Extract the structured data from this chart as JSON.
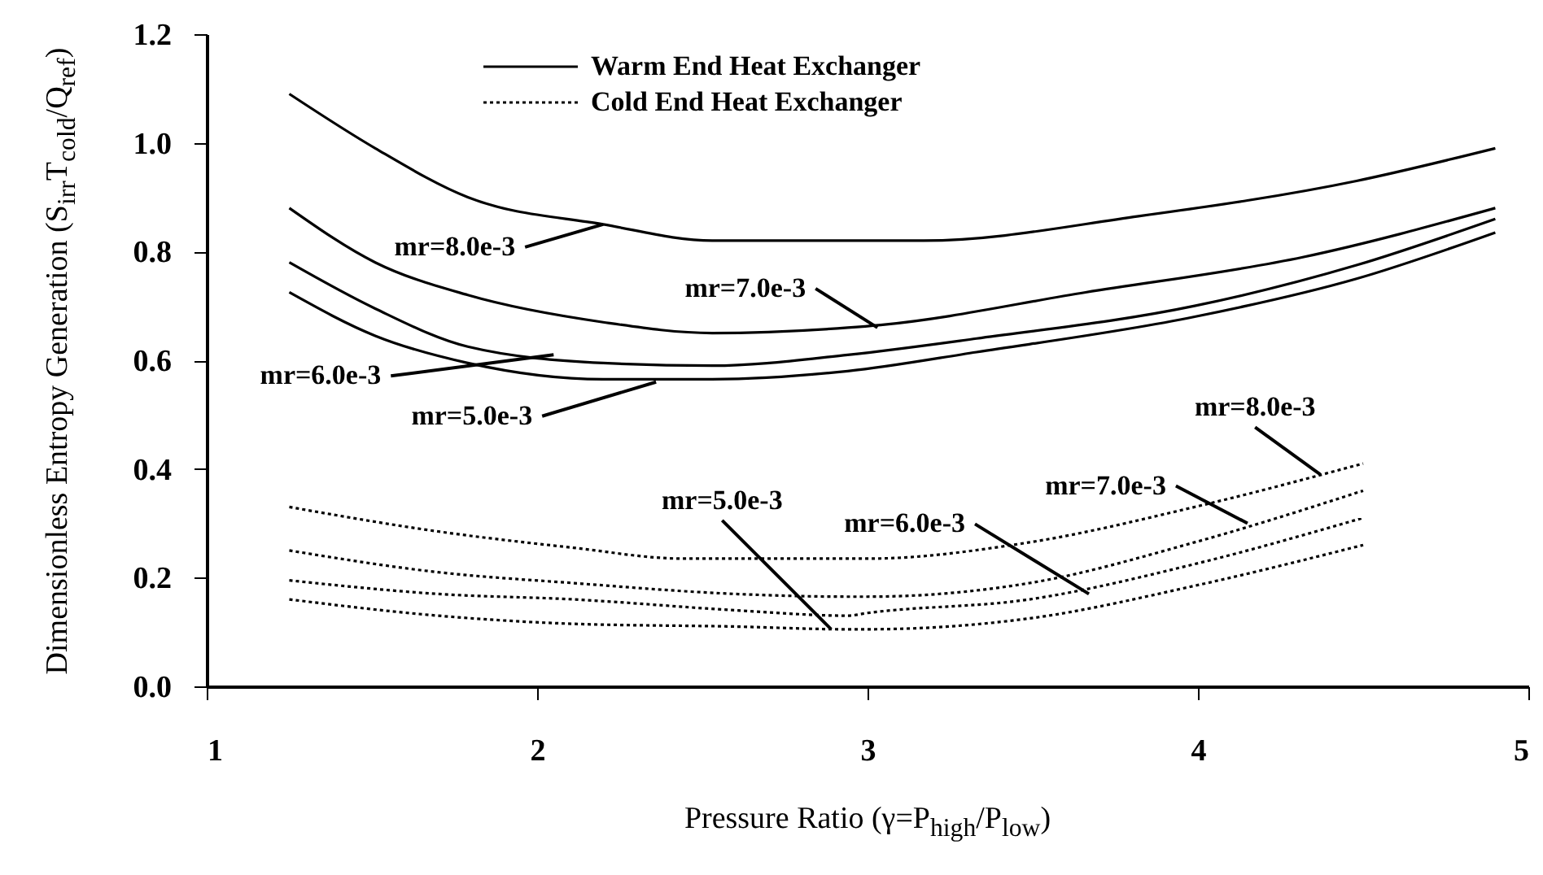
{
  "chart_data": {
    "type": "line",
    "xlabel": "Pressure Ratio (γ=P$_{high}$/P$_{low}$)",
    "ylabel": "Dimensionless Entropy Generation (S$_{irr}$T$_{cold}$/Q$_{ref}$)",
    "xlim": [
      1,
      5
    ],
    "xticks": [
      1,
      2,
      3,
      4,
      5
    ],
    "ylim": [
      0,
      1.2
    ],
    "yticks": [
      {
        "value": 0,
        "label": "0.0"
      },
      {
        "value": 0.2,
        "label": "0.2"
      },
      {
        "value": 0.4,
        "label": "0.4"
      },
      {
        "value": 0.6,
        "label": "0.6"
      },
      {
        "value": 0.8,
        "label": "0.8"
      },
      {
        "value": 1,
        "label": "1.0"
      },
      {
        "value": 1.2,
        "label": "1.2"
      }
    ],
    "grid": false,
    "legend": "top",
    "marker": "none",
    "series": [
      {
        "name": "Warm End Heat Exchanger",
        "color": "#000000",
        "line_style": "solid",
        "x": [
          1.25,
          1.51,
          1.79,
          2.2,
          2.53,
          2.94,
          3.17,
          3.82,
          4.48,
          4.9
        ],
        "values": [
          1.09,
          0.99,
          0.9,
          0.85,
          0.82,
          0.82,
          0.82,
          0.865,
          0.93,
          0.99
        ]
      },
      {
        "color": "#000000",
        "line_style": "solid",
        "x": [
          1.25,
          1.51,
          1.79,
          2.2,
          2.53,
          2.94,
          3.04,
          3.66,
          4.32,
          4.9
        ],
        "values": [
          0.88,
          0.78,
          0.72,
          0.67,
          0.65,
          0.66,
          0.665,
          0.725,
          0.79,
          0.88
        ]
      },
      {
        "color": "#000000",
        "line_style": "solid",
        "x": [
          1.25,
          1.51,
          1.79,
          2.2,
          2.53,
          2.94,
          3.33,
          3.99,
          4.48,
          4.9
        ],
        "values": [
          0.78,
          0.695,
          0.625,
          0.595,
          0.59,
          0.61,
          0.64,
          0.7,
          0.775,
          0.86
        ]
      },
      {
        "color": "#000000",
        "line_style": "solid",
        "x": [
          1.25,
          1.51,
          1.79,
          2.2,
          2.53,
          2.94,
          3.33,
          3.99,
          4.48,
          4.9
        ],
        "values": [
          0.725,
          0.645,
          0.595,
          0.565,
          0.565,
          0.58,
          0.615,
          0.68,
          0.75,
          0.835
        ]
      },
      {
        "name": "Cold End Heat Exchanger",
        "color": "#000000",
        "line_style": "dotted",
        "x": [
          1.25,
          1.7,
          2.11,
          2.44,
          2.94,
          3.0,
          3.49,
          3.99,
          4.5
        ],
        "values": [
          0.33,
          0.285,
          0.255,
          0.235,
          0.235,
          0.235,
          0.265,
          0.33,
          0.41
        ]
      },
      {
        "color": "#000000",
        "line_style": "dotted",
        "x": [
          1.25,
          1.7,
          2.11,
          2.6,
          2.94,
          3.0,
          3.49,
          3.99,
          4.5
        ],
        "values": [
          0.25,
          0.21,
          0.19,
          0.17,
          0.165,
          0.165,
          0.19,
          0.265,
          0.36
        ]
      },
      {
        "color": "#000000",
        "line_style": "dotted",
        "x": [
          1.25,
          1.7,
          2.11,
          2.6,
          2.94,
          3.0,
          3.49,
          3.99,
          4.5
        ],
        "values": [
          0.195,
          0.17,
          0.16,
          0.14,
          0.13,
          0.135,
          0.16,
          0.225,
          0.31
        ]
      },
      {
        "color": "#000000",
        "line_style": "dotted",
        "x": [
          1.25,
          1.7,
          2.11,
          2.6,
          2.94,
          3.0,
          3.49,
          3.99,
          4.5
        ],
        "values": [
          0.16,
          0.13,
          0.115,
          0.11,
          0.105,
          0.105,
          0.125,
          0.185,
          0.26
        ]
      }
    ],
    "annotations": [
      {
        "text": "mr=8.0e-3",
        "x": 2.2,
        "y": 0.85
      },
      {
        "text": "mr=7.0e-3",
        "x": 3.03,
        "y": 0.66
      },
      {
        "text": "mr=6.0e-3",
        "x": 2.05,
        "y": 0.61
      },
      {
        "text": "mr=5.0e-3",
        "x": 2.36,
        "y": 0.56
      },
      {
        "text": "mr=5.0e-3",
        "x": 2.89,
        "y": 0.105
      },
      {
        "text": "mr=6.0e-3",
        "x": 3.67,
        "y": 0.17
      },
      {
        "text": "mr=7.0e-3",
        "x": 4.15,
        "y": 0.3
      },
      {
        "text": "mr=8.0e-3",
        "x": 4.37,
        "y": 0.39
      }
    ]
  }
}
